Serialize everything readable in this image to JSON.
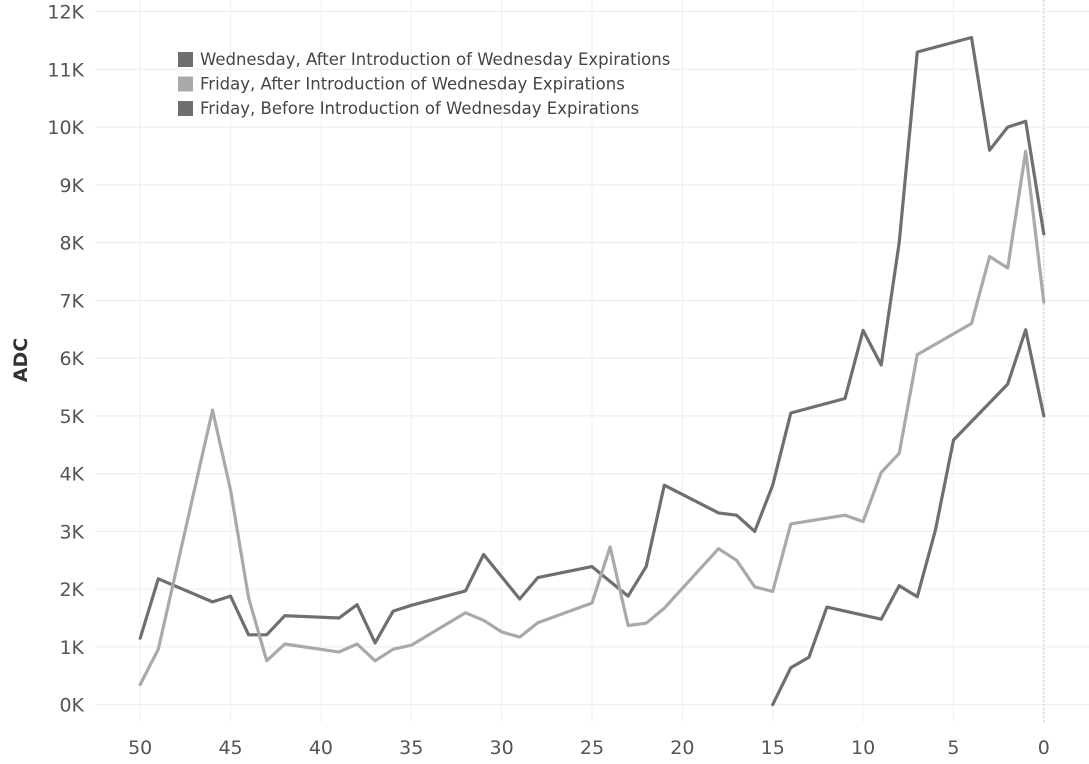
{
  "chart_data": {
    "type": "line",
    "title": "",
    "xlabel": "",
    "ylabel": "ADC",
    "xlim": [
      52.5,
      -2.5
    ],
    "ylim": [
      -300,
      12200
    ],
    "x_reversed": true,
    "grid": true,
    "legend_position": "top-left",
    "x_ticks": [
      50,
      45,
      40,
      35,
      30,
      25,
      20,
      15,
      10,
      5,
      0
    ],
    "y_ticks": [
      {
        "value": 0,
        "label": "0K"
      },
      {
        "value": 1000,
        "label": "1K"
      },
      {
        "value": 2000,
        "label": "2K"
      },
      {
        "value": 3000,
        "label": "3K"
      },
      {
        "value": 4000,
        "label": "4K"
      },
      {
        "value": 5000,
        "label": "5K"
      },
      {
        "value": 6000,
        "label": "6K"
      },
      {
        "value": 7000,
        "label": "7K"
      },
      {
        "value": 8000,
        "label": "8K"
      },
      {
        "value": 9000,
        "label": "9K"
      },
      {
        "value": 10000,
        "label": "10K"
      },
      {
        "value": 11000,
        "label": "11K"
      },
      {
        "value": 12000,
        "label": "12K"
      }
    ],
    "series": [
      {
        "name": "Wednesday, After Introduction of Wednesday Expirations",
        "color": "#6f6f6f",
        "points": [
          [
            50,
            1150
          ],
          [
            49,
            2180
          ],
          [
            46,
            1780
          ],
          [
            45,
            1880
          ],
          [
            44,
            1210
          ],
          [
            43,
            1210
          ],
          [
            42,
            1540
          ],
          [
            39,
            1500
          ],
          [
            38,
            1730
          ],
          [
            37,
            1070
          ],
          [
            36,
            1620
          ],
          [
            35,
            1720
          ],
          [
            32,
            1970
          ],
          [
            31,
            2600
          ],
          [
            29,
            1830
          ],
          [
            28,
            2200
          ],
          [
            25,
            2390
          ],
          [
            23,
            1880
          ],
          [
            22,
            2390
          ],
          [
            21,
            3800
          ],
          [
            18,
            3320
          ],
          [
            17,
            3280
          ],
          [
            16,
            3000
          ],
          [
            15,
            3800
          ],
          [
            14,
            5050
          ],
          [
            11,
            5300
          ],
          [
            10,
            6480
          ],
          [
            9,
            5880
          ],
          [
            8,
            8000
          ],
          [
            7,
            11300
          ],
          [
            4,
            11550
          ],
          [
            3,
            9600
          ],
          [
            2,
            10000
          ],
          [
            1,
            10100
          ],
          [
            0,
            8150
          ]
        ]
      },
      {
        "name": "Friday, After Introduction of Wednesday Expirations",
        "color": "#a9a9a9",
        "points": [
          [
            50,
            350
          ],
          [
            49,
            960
          ],
          [
            46,
            5100
          ],
          [
            45,
            3720
          ],
          [
            44,
            1850
          ],
          [
            43,
            760
          ],
          [
            42,
            1050
          ],
          [
            39,
            910
          ],
          [
            38,
            1050
          ],
          [
            37,
            760
          ],
          [
            36,
            960
          ],
          [
            35,
            1030
          ],
          [
            32,
            1590
          ],
          [
            31,
            1460
          ],
          [
            30,
            1260
          ],
          [
            29,
            1170
          ],
          [
            28,
            1420
          ],
          [
            25,
            1760
          ],
          [
            24,
            2730
          ],
          [
            23,
            1370
          ],
          [
            22,
            1410
          ],
          [
            21,
            1670
          ],
          [
            18,
            2700
          ],
          [
            17,
            2500
          ],
          [
            16,
            2040
          ],
          [
            15,
            1960
          ],
          [
            14,
            3130
          ],
          [
            11,
            3280
          ],
          [
            10,
            3170
          ],
          [
            9,
            4020
          ],
          [
            8,
            4350
          ],
          [
            7,
            6060
          ],
          [
            4,
            6600
          ],
          [
            3,
            7760
          ],
          [
            2,
            7560
          ],
          [
            1,
            9580
          ],
          [
            0,
            6970
          ]
        ]
      },
      {
        "name": "Friday, Before Introduction of Wednesday Expirations",
        "color": "#6f6f6f",
        "points": [
          [
            15,
            0
          ],
          [
            14,
            640
          ],
          [
            13,
            820
          ],
          [
            12,
            1690
          ],
          [
            9,
            1480
          ],
          [
            8,
            2060
          ],
          [
            7,
            1870
          ],
          [
            6,
            3020
          ],
          [
            5,
            4580
          ],
          [
            2,
            5550
          ],
          [
            1,
            6490
          ],
          [
            0,
            5000
          ]
        ]
      }
    ]
  }
}
